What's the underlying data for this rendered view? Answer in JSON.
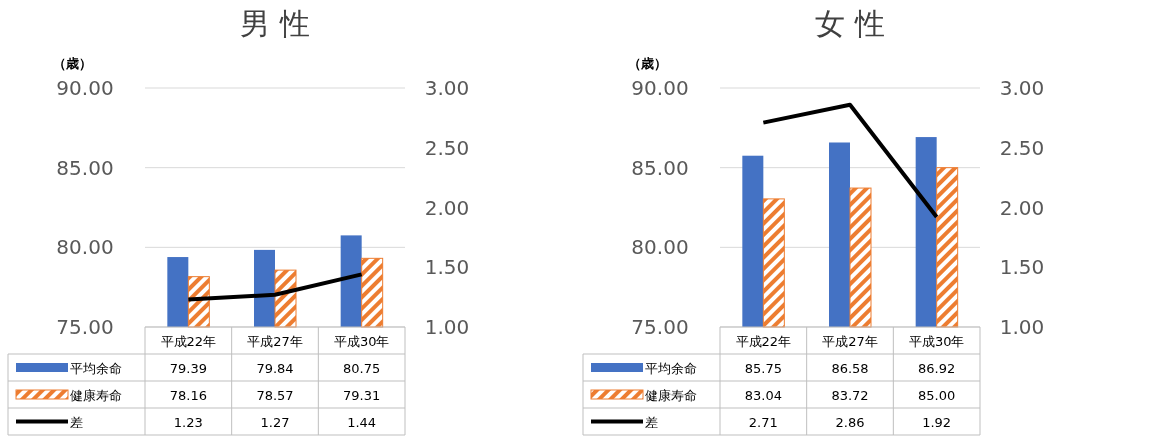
{
  "chart_data": [
    {
      "type": "bar",
      "title": "男 性",
      "ylabel": "（歳）",
      "categories": [
        "平成22年",
        "平成27年",
        "平成30年"
      ],
      "series": [
        {
          "name": "平均余命",
          "type": "bar",
          "color": "#4472c4",
          "values": [
            79.39,
            79.84,
            80.75
          ],
          "value_labels": [
            "79.39",
            "79.84",
            "80.75"
          ]
        },
        {
          "name": "健康寿命",
          "type": "bar",
          "color": "#ed7d31",
          "values": [
            78.16,
            78.57,
            79.31
          ],
          "value_labels": [
            "78.16",
            "78.57",
            "79.31"
          ]
        },
        {
          "name": "差",
          "type": "line",
          "axis": "y2",
          "color": "#000000",
          "values": [
            1.23,
            1.27,
            1.44
          ],
          "value_labels": [
            "1.23",
            "1.27",
            "1.44"
          ]
        }
      ],
      "ylim": [
        75,
        90
      ],
      "yticks": [
        {
          "value": 75,
          "label": "75.00"
        },
        {
          "value": 80,
          "label": "80.00"
        },
        {
          "value": 85,
          "label": "85.00"
        },
        {
          "value": 90,
          "label": "90.00"
        }
      ],
      "y2lim": [
        1,
        3
      ],
      "y2ticks": [
        {
          "value": 1,
          "label": "1.00"
        },
        {
          "value": 1.5,
          "label": "1.50"
        },
        {
          "value": 2,
          "label": "2.00"
        },
        {
          "value": 2.5,
          "label": "2.50"
        },
        {
          "value": 3,
          "label": "3.00"
        }
      ],
      "grid": "y",
      "legend": "bottom",
      "marker": "none"
    },
    {
      "type": "bar",
      "title": "女 性",
      "ylabel": "（歳）",
      "categories": [
        "平成22年",
        "平成27年",
        "平成30年"
      ],
      "series": [
        {
          "name": "平均余命",
          "type": "bar",
          "color": "#4472c4",
          "values": [
            85.75,
            86.58,
            86.92
          ],
          "value_labels": [
            "85.75",
            "86.58",
            "86.92"
          ]
        },
        {
          "name": "健康寿命",
          "type": "bar",
          "color": "#ed7d31",
          "values": [
            83.04,
            83.72,
            85.0
          ],
          "value_labels": [
            "83.04",
            "83.72",
            "85.00"
          ]
        },
        {
          "name": "差",
          "type": "line",
          "axis": "y2",
          "color": "#000000",
          "values": [
            2.71,
            2.86,
            1.92
          ],
          "value_labels": [
            "2.71",
            "2.86",
            "1.92"
          ]
        }
      ],
      "ylim": [
        75,
        90
      ],
      "yticks": [
        {
          "value": 75,
          "label": "75.00"
        },
        {
          "value": 80,
          "label": "80.00"
        },
        {
          "value": 85,
          "label": "85.00"
        },
        {
          "value": 90,
          "label": "90.00"
        }
      ],
      "y2lim": [
        1,
        3
      ],
      "y2ticks": [
        {
          "value": 1,
          "label": "1.00"
        },
        {
          "value": 1.5,
          "label": "1.50"
        },
        {
          "value": 2,
          "label": "2.00"
        },
        {
          "value": 2.5,
          "label": "2.50"
        },
        {
          "value": 3,
          "label": "3.00"
        }
      ],
      "grid": "y",
      "legend": "bottom",
      "marker": "none"
    }
  ]
}
